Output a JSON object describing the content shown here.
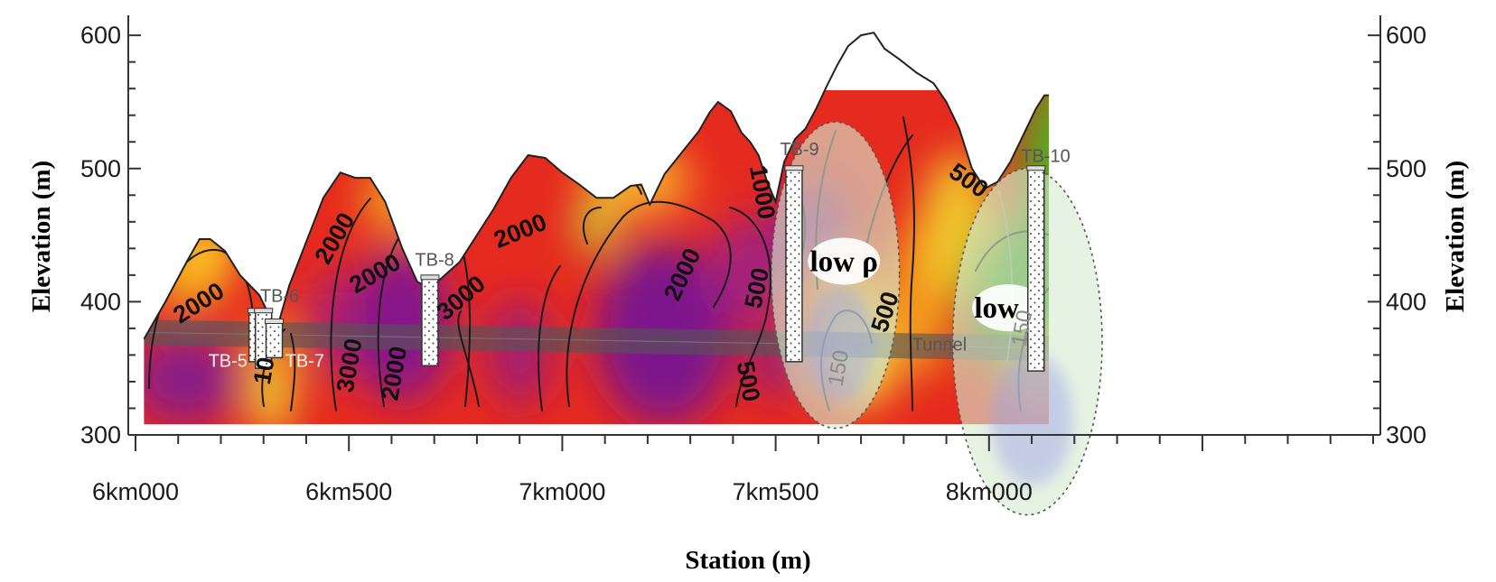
{
  "chart_data": {
    "type": "heatmap",
    "xlabel": "Station (m)",
    "ylabel_left": "Elevation (m)",
    "ylabel_right": "Elevation (m)",
    "xlim": [
      6000,
      8900
    ],
    "ylim": [
      300,
      615
    ],
    "y_ticks": [
      300,
      400,
      500,
      600
    ],
    "x_ticks": [
      {
        "value": 6000,
        "label": "6km000"
      },
      {
        "value": 6500,
        "label": "6km500"
      },
      {
        "value": 7000,
        "label": "7km000"
      },
      {
        "value": 7500,
        "label": "7km500"
      },
      {
        "value": 8000,
        "label": "8km000"
      }
    ],
    "minor_x_step": 100,
    "minor_y_step": 20,
    "section_bottom": 308,
    "terrain": [
      [
        6020,
        372
      ],
      [
        6070,
        400
      ],
      [
        6120,
        430
      ],
      [
        6150,
        447
      ],
      [
        6175,
        447
      ],
      [
        6210,
        438
      ],
      [
        6245,
        420
      ],
      [
        6290,
        405
      ],
      [
        6310,
        392
      ],
      [
        6330,
        378
      ],
      [
        6360,
        412
      ],
      [
        6400,
        445
      ],
      [
        6440,
        478
      ],
      [
        6480,
        497
      ],
      [
        6515,
        493
      ],
      [
        6550,
        493
      ],
      [
        6585,
        475
      ],
      [
        6625,
        440
      ],
      [
        6660,
        415
      ],
      [
        6690,
        410
      ],
      [
        6760,
        430
      ],
      [
        6800,
        450
      ],
      [
        6840,
        470
      ],
      [
        6880,
        493
      ],
      [
        6920,
        510
      ],
      [
        6960,
        508
      ],
      [
        7000,
        497
      ],
      [
        7040,
        488
      ],
      [
        7080,
        478
      ],
      [
        7120,
        478
      ],
      [
        7160,
        487
      ],
      [
        7185,
        488
      ],
      [
        7205,
        473
      ],
      [
        7240,
        496
      ],
      [
        7280,
        512
      ],
      [
        7320,
        528
      ],
      [
        7345,
        542
      ],
      [
        7365,
        550
      ],
      [
        7395,
        543
      ],
      [
        7420,
        527
      ],
      [
        7440,
        520
      ],
      [
        7460,
        510
      ],
      [
        7480,
        490
      ],
      [
        7500,
        475
      ],
      [
        7520,
        505
      ],
      [
        7545,
        522
      ],
      [
        7570,
        530
      ],
      [
        7595,
        545
      ],
      [
        7620,
        562
      ],
      [
        7645,
        578
      ],
      [
        7670,
        592
      ],
      [
        7700,
        600
      ],
      [
        7730,
        602
      ],
      [
        7755,
        590
      ],
      [
        7790,
        582
      ],
      [
        7830,
        572
      ],
      [
        7870,
        564
      ],
      [
        7900,
        550
      ],
      [
        7930,
        530
      ],
      [
        7960,
        500
      ],
      [
        7990,
        485
      ],
      [
        8020,
        490
      ],
      [
        8050,
        505
      ],
      [
        8080,
        525
      ],
      [
        8110,
        545
      ],
      [
        8130,
        555
      ],
      [
        8140,
        555
      ]
    ],
    "tunnel": {
      "label": "Tunnel",
      "start": [
        6020,
        377
      ],
      "end": [
        8140,
        365
      ],
      "thickness": 14
    },
    "boreholes": [
      {
        "name": "TB-5",
        "station": 6285,
        "top": 393,
        "bottom": 355
      },
      {
        "name": "TB-6",
        "station": 6300,
        "top": 393,
        "bottom": 350
      },
      {
        "name": "TB-7",
        "station": 6325,
        "top": 385,
        "bottom": 358
      },
      {
        "name": "TB-8",
        "station": 6690,
        "top": 418,
        "bottom": 352
      },
      {
        "name": "TB-9",
        "station": 7543,
        "top": 500,
        "bottom": 355
      },
      {
        "name": "TB-10",
        "station": 8110,
        "top": 500,
        "bottom": 348
      }
    ],
    "annotations": [
      {
        "text": "low ρ",
        "station": 7660,
        "elevation": 425,
        "zone": [
          7640,
          420,
          150,
          115
        ]
      },
      {
        "text": "low ρ",
        "station": 8045,
        "elevation": 390,
        "zone": [
          8090,
          370,
          175,
          130
        ]
      }
    ],
    "contour_labels": [
      {
        "text": "2000",
        "station": 6150,
        "elevation": 398,
        "angle": -32
      },
      {
        "text": "10",
        "station": 6305,
        "elevation": 348,
        "angle": -80
      },
      {
        "text": "2000",
        "station": 6470,
        "elevation": 447,
        "angle": -60
      },
      {
        "text": "2000",
        "station": 6563,
        "elevation": 420,
        "angle": -30
      },
      {
        "text": "3000",
        "station": 6505,
        "elevation": 352,
        "angle": -80
      },
      {
        "text": "2000",
        "station": 6610,
        "elevation": 346,
        "angle": -80
      },
      {
        "text": "3000",
        "station": 6765,
        "elevation": 402,
        "angle": -40
      },
      {
        "text": "2000",
        "station": 6903,
        "elevation": 452,
        "angle": -22
      },
      {
        "text": "2000",
        "station": 7285,
        "elevation": 420,
        "angle": -65
      },
      {
        "text": "1000",
        "station": 7465,
        "elevation": 482,
        "angle": 80
      },
      {
        "text": "500",
        "station": 7460,
        "elevation": 410,
        "angle": -78
      },
      {
        "text": "500",
        "station": 7432,
        "elevation": 340,
        "angle": 80
      },
      {
        "text": "150",
        "station": 7650,
        "elevation": 350,
        "angle": -80
      },
      {
        "text": "500",
        "station": 7760,
        "elevation": 392,
        "angle": -72
      },
      {
        "text": "500",
        "station": 7950,
        "elevation": 490,
        "angle": 35
      },
      {
        "text": "150",
        "station": 8080,
        "elevation": 380,
        "angle": -80
      }
    ]
  }
}
